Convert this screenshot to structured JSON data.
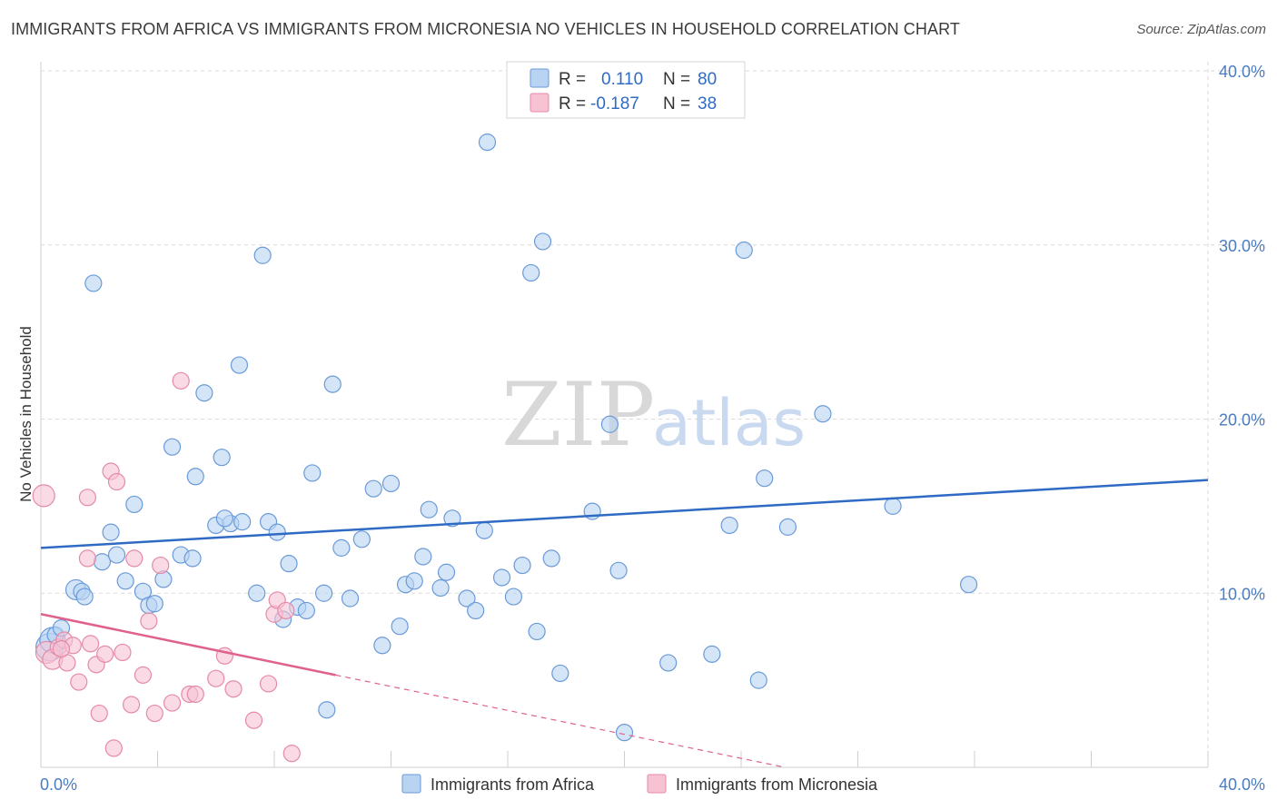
{
  "title": "IMMIGRANTS FROM AFRICA VS IMMIGRANTS FROM MICRONESIA NO VEHICLES IN HOUSEHOLD CORRELATION CHART",
  "source": "Source: ZipAtlas.com",
  "watermark": {
    "zip": "ZIP",
    "atlas": "atlas"
  },
  "colors": {
    "africa_fill": "#b9d3f3",
    "africa_stroke": "#6a9ad8",
    "africa_line": "#2f6bc4",
    "micronesia_fill": "#f7c3d3",
    "micronesia_stroke": "#e58aa8",
    "micronesia_line": "#e0618b",
    "grid": "#d9d9d9",
    "axis_text": "#4a7cc0"
  },
  "legend": {
    "rows": [
      {
        "r_label": "R =",
        "r_value": "0.110",
        "n_label": "N =",
        "n_value": "80"
      },
      {
        "r_label": "R =",
        "r_value": "-0.187",
        "n_label": "N =",
        "n_value": "38"
      }
    ]
  },
  "chart_data": {
    "type": "scatter",
    "title": "IMMIGRANTS FROM AFRICA VS IMMIGRANTS FROM MICRONESIA NO VEHICLES IN HOUSEHOLD CORRELATION CHART",
    "xlabel": "",
    "ylabel": "No Vehicles in Household",
    "xlim": [
      0,
      40
    ],
    "ylim": [
      0,
      40
    ],
    "x_tick_labels": [
      "0.0%",
      "40.0%"
    ],
    "y_ticks": [
      10,
      20,
      30,
      40
    ],
    "y_tick_labels": [
      "10.0%",
      "20.0%",
      "30.0%",
      "40.0%"
    ],
    "grid": true,
    "legend_position": "top-center",
    "series": [
      {
        "name": "Immigrants from Africa",
        "r": 0.11,
        "n": 80,
        "trend": {
          "x0": 0,
          "y0": 12.6,
          "x1": 40,
          "y1": 16.5,
          "dashed_from": null
        },
        "points": [
          [
            0.3,
            6.9
          ],
          [
            0.4,
            7.3
          ],
          [
            0.5,
            7.6
          ],
          [
            0.7,
            8.0
          ],
          [
            1.2,
            10.2
          ],
          [
            1.4,
            10.1
          ],
          [
            1.5,
            9.8
          ],
          [
            1.8,
            27.8
          ],
          [
            2.1,
            11.8
          ],
          [
            2.4,
            13.5
          ],
          [
            2.6,
            12.2
          ],
          [
            2.9,
            10.7
          ],
          [
            3.2,
            15.1
          ],
          [
            3.5,
            10.1
          ],
          [
            3.7,
            9.3
          ],
          [
            3.9,
            9.4
          ],
          [
            4.2,
            10.8
          ],
          [
            4.5,
            18.4
          ],
          [
            4.8,
            12.2
          ],
          [
            5.2,
            12.0
          ],
          [
            5.3,
            16.7
          ],
          [
            5.6,
            21.5
          ],
          [
            6.0,
            13.9
          ],
          [
            6.2,
            17.8
          ],
          [
            6.5,
            14.0
          ],
          [
            6.8,
            23.1
          ],
          [
            6.9,
            14.1
          ],
          [
            7.4,
            10.0
          ],
          [
            7.6,
            29.4
          ],
          [
            7.8,
            14.1
          ],
          [
            8.1,
            13.5
          ],
          [
            8.3,
            8.5
          ],
          [
            8.5,
            11.7
          ],
          [
            8.8,
            9.2
          ],
          [
            9.1,
            9.0
          ],
          [
            9.3,
            16.9
          ],
          [
            9.7,
            10.0
          ],
          [
            10.0,
            22.0
          ],
          [
            10.3,
            12.6
          ],
          [
            10.6,
            9.7
          ],
          [
            11.0,
            13.1
          ],
          [
            11.4,
            16.0
          ],
          [
            11.7,
            7.0
          ],
          [
            12.0,
            16.3
          ],
          [
            12.3,
            8.1
          ],
          [
            12.5,
            10.5
          ],
          [
            12.8,
            10.7
          ],
          [
            13.1,
            12.1
          ],
          [
            13.3,
            14.8
          ],
          [
            13.7,
            10.3
          ],
          [
            13.9,
            11.2
          ],
          [
            14.1,
            14.3
          ],
          [
            14.6,
            9.7
          ],
          [
            14.9,
            9.0
          ],
          [
            15.2,
            13.6
          ],
          [
            15.3,
            35.9
          ],
          [
            15.8,
            10.9
          ],
          [
            16.2,
            9.8
          ],
          [
            16.5,
            11.6
          ],
          [
            16.8,
            28.4
          ],
          [
            17.0,
            7.8
          ],
          [
            17.2,
            30.2
          ],
          [
            17.5,
            12.0
          ],
          [
            17.8,
            5.4
          ],
          [
            18.9,
            14.7
          ],
          [
            19.5,
            19.7
          ],
          [
            19.8,
            11.3
          ],
          [
            20.0,
            2.0
          ],
          [
            21.5,
            6.0
          ],
          [
            23.0,
            6.5
          ],
          [
            23.6,
            13.9
          ],
          [
            24.1,
            29.7
          ],
          [
            24.6,
            5.0
          ],
          [
            24.8,
            16.6
          ],
          [
            25.6,
            13.8
          ],
          [
            26.8,
            20.3
          ],
          [
            29.2,
            15.0
          ],
          [
            31.8,
            10.5
          ],
          [
            9.8,
            3.3
          ],
          [
            6.3,
            14.3
          ]
        ]
      },
      {
        "name": "Immigrants from Micronesia",
        "r": -0.187,
        "n": 38,
        "trend": {
          "x0": 0,
          "y0": 8.8,
          "x1": 10.1,
          "y1": 5.3,
          "dashed_to_x": 25.5,
          "dashed_to_y": 0
        },
        "points": [
          [
            0.1,
            15.6
          ],
          [
            0.2,
            6.6
          ],
          [
            0.4,
            6.2
          ],
          [
            0.6,
            6.9
          ],
          [
            0.8,
            7.3
          ],
          [
            0.9,
            6.0
          ],
          [
            1.1,
            7.0
          ],
          [
            1.3,
            4.9
          ],
          [
            1.6,
            12.0
          ],
          [
            1.6,
            15.5
          ],
          [
            1.9,
            5.9
          ],
          [
            2.0,
            3.1
          ],
          [
            2.2,
            6.5
          ],
          [
            2.4,
            17.0
          ],
          [
            2.5,
            1.1
          ],
          [
            2.6,
            16.4
          ],
          [
            2.8,
            6.6
          ],
          [
            3.1,
            3.6
          ],
          [
            3.2,
            12.0
          ],
          [
            3.5,
            5.3
          ],
          [
            3.7,
            8.4
          ],
          [
            3.9,
            3.1
          ],
          [
            4.1,
            11.6
          ],
          [
            4.5,
            3.7
          ],
          [
            4.8,
            22.2
          ],
          [
            5.1,
            4.2
          ],
          [
            5.3,
            4.2
          ],
          [
            6.0,
            5.1
          ],
          [
            6.3,
            6.4
          ],
          [
            6.6,
            4.5
          ],
          [
            7.3,
            2.7
          ],
          [
            7.8,
            4.8
          ],
          [
            8.0,
            8.8
          ],
          [
            8.1,
            9.6
          ],
          [
            8.4,
            9.0
          ],
          [
            8.6,
            0.8
          ],
          [
            1.7,
            7.1
          ],
          [
            0.7,
            6.8
          ]
        ]
      }
    ]
  },
  "bottom_legend": [
    {
      "label": "Immigrants from Africa"
    },
    {
      "label": "Immigrants from Micronesia"
    }
  ]
}
